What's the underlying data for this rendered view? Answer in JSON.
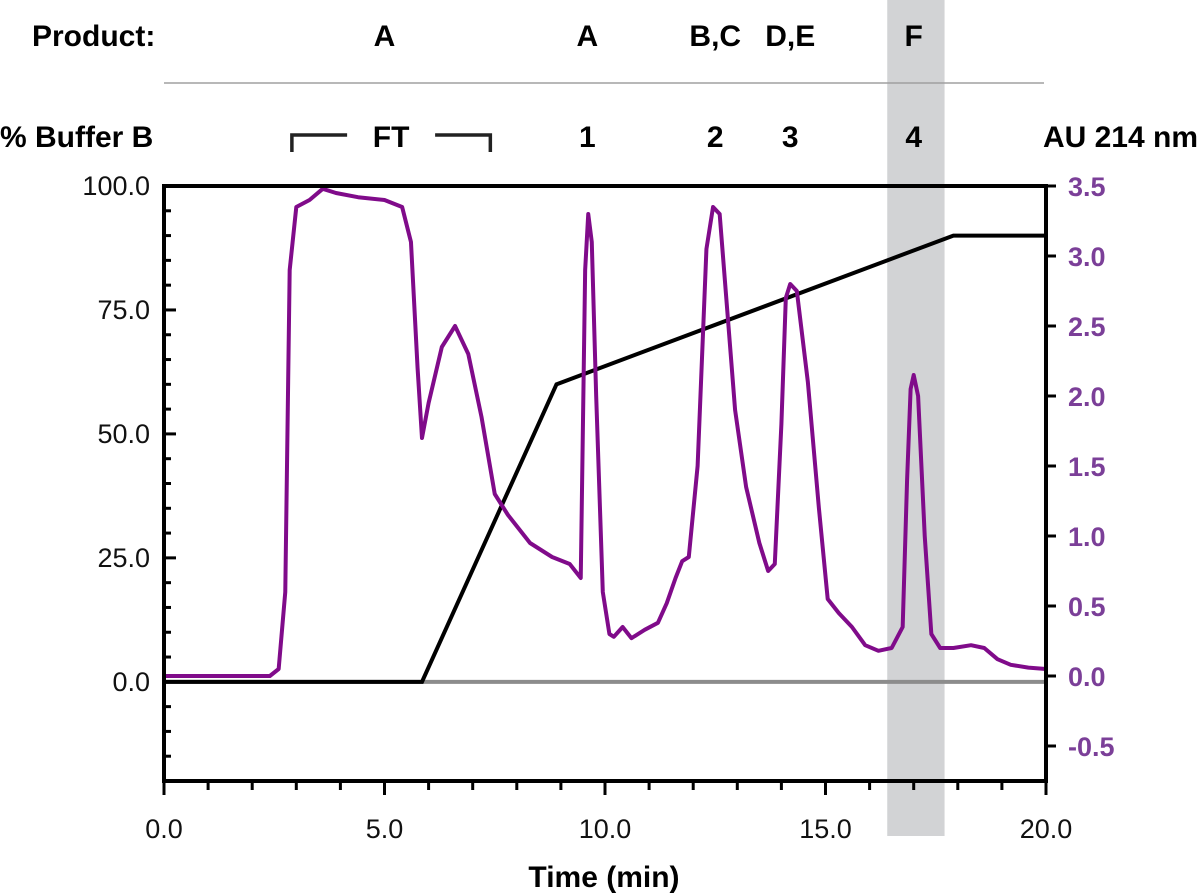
{
  "chart_data": {
    "type": "line",
    "xlabel": "Time (min)",
    "ylabel_left": "% Buffer B",
    "ylabel_right": "AU 214 nm",
    "xlim": [
      0,
      20
    ],
    "ylim_left": [
      -20,
      100
    ],
    "ylim_right": [
      -0.75,
      3.5
    ],
    "x_ticks": [
      "0.0",
      "5.0",
      "10.0",
      "15.0",
      "20.0"
    ],
    "x_tick_values": [
      0,
      5,
      10,
      15,
      20
    ],
    "y_left_ticks": [
      "0.0",
      "25.0",
      "50.0",
      "75.0",
      "100.0"
    ],
    "y_left_tick_values": [
      0,
      25,
      50,
      75,
      100
    ],
    "y_right_ticks": [
      "-0.5",
      "0.0",
      "0.5",
      "1.0",
      "1.5",
      "2.0",
      "2.5",
      "3.0",
      "3.5"
    ],
    "y_right_tick_values": [
      -0.5,
      0,
      0.5,
      1.0,
      1.5,
      2.0,
      2.5,
      3.0,
      3.5
    ],
    "highlight_band": {
      "x_start": 16.4,
      "x_end": 17.7,
      "color": "#d2d3d5"
    },
    "colors": {
      "absorbance": "#800b8a",
      "right_axis": "#7b3f98",
      "gradient": "#000000",
      "baseline": "#8c8c8c",
      "divider": "#a0a0a0"
    },
    "header": {
      "product_label": "Product:",
      "products": [
        {
          "x": 5.0,
          "label": "A"
        },
        {
          "x": 9.6,
          "label": "A"
        },
        {
          "x": 12.5,
          "label": "B,C"
        },
        {
          "x": 14.2,
          "label": "D,E"
        },
        {
          "x": 17.0,
          "label": "F"
        }
      ],
      "fraction_label": "FT",
      "ft_range": [
        2.9,
        7.4
      ],
      "fractions": [
        {
          "x": 9.6,
          "label": "1"
        },
        {
          "x": 12.5,
          "label": "2"
        },
        {
          "x": 14.2,
          "label": "3"
        },
        {
          "x": 17.0,
          "label": "4"
        }
      ]
    },
    "series": [
      {
        "name": "% Buffer B",
        "axis": "left",
        "x": [
          0,
          5.85,
          8.9,
          17.9,
          20
        ],
        "y": [
          0,
          0,
          60,
          90,
          90
        ]
      },
      {
        "name": "AU 214 nm",
        "axis": "right",
        "x": [
          0,
          2.4,
          2.6,
          2.75,
          2.85,
          3.0,
          3.3,
          3.6,
          3.9,
          4.4,
          5.0,
          5.4,
          5.6,
          5.75,
          5.85,
          6.0,
          6.3,
          6.6,
          6.9,
          7.2,
          7.5,
          7.8,
          8.3,
          8.8,
          9.2,
          9.45,
          9.55,
          9.62,
          9.7,
          9.8,
          9.95,
          10.1,
          10.2,
          10.4,
          10.6,
          10.9,
          11.2,
          11.4,
          11.6,
          11.75,
          11.9,
          12.1,
          12.3,
          12.45,
          12.6,
          12.75,
          12.95,
          13.2,
          13.5,
          13.7,
          13.85,
          14.0,
          14.1,
          14.2,
          14.35,
          14.6,
          14.85,
          15.05,
          15.3,
          15.6,
          15.9,
          16.2,
          16.5,
          16.75,
          16.85,
          16.93,
          17.0,
          17.1,
          17.25,
          17.4,
          17.6,
          17.9,
          18.3,
          18.6,
          18.9,
          19.2,
          19.6,
          20.0
        ],
        "y": [
          0,
          0,
          0.05,
          0.6,
          2.9,
          3.35,
          3.4,
          3.48,
          3.45,
          3.42,
          3.4,
          3.35,
          3.1,
          2.2,
          1.7,
          1.95,
          2.35,
          2.5,
          2.3,
          1.85,
          1.3,
          1.15,
          0.95,
          0.85,
          0.8,
          0.7,
          2.9,
          3.3,
          3.1,
          2.0,
          0.6,
          0.3,
          0.28,
          0.35,
          0.27,
          0.33,
          0.38,
          0.52,
          0.7,
          0.82,
          0.85,
          1.5,
          3.05,
          3.35,
          3.3,
          2.7,
          1.9,
          1.35,
          0.95,
          0.75,
          0.8,
          1.8,
          2.7,
          2.8,
          2.75,
          2.1,
          1.2,
          0.55,
          0.45,
          0.35,
          0.22,
          0.18,
          0.2,
          0.35,
          1.4,
          2.05,
          2.15,
          2.0,
          1.0,
          0.3,
          0.2,
          0.2,
          0.22,
          0.2,
          0.12,
          0.08,
          0.06,
          0.05
        ]
      }
    ]
  }
}
